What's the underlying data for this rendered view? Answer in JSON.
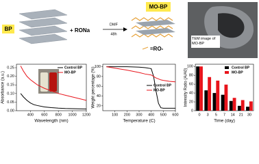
{
  "scheme": {
    "bp_label": "BP",
    "reagent": "+ RONa",
    "solvent": "DMF",
    "time": "48h",
    "product_label": "MO-BP",
    "group_label": "=RO-",
    "tem_caption": "TEM image of MO-BP"
  },
  "chart_data": [
    {
      "type": "line",
      "xlabel": "Wavelength (nm)",
      "ylabel": "Absorbance (a.u.)",
      "x": [
        260,
        300,
        350,
        400,
        450,
        500,
        600,
        700,
        800,
        900,
        1000,
        1100,
        1200
      ],
      "series": [
        {
          "name": "Control BP",
          "color": "#000000",
          "values": [
            0.1,
            0.08,
            0.06,
            0.045,
            0.035,
            0.03,
            0.022,
            0.018,
            0.015,
            0.013,
            0.012,
            0.011,
            0.01
          ]
        },
        {
          "name": "MO-BP",
          "color": "#e8141b",
          "values": [
            0.26,
            0.23,
            0.2,
            0.18,
            0.165,
            0.15,
            0.13,
            0.115,
            0.1,
            0.09,
            0.08,
            0.07,
            0.06
          ]
        }
      ],
      "xlim": [
        200,
        1200
      ],
      "xticks": [
        400,
        600,
        800,
        1000,
        1200
      ],
      "ylim": [
        0,
        0.27
      ],
      "yticks": [
        {
          "value": 0,
          "label": "0.00"
        },
        {
          "value": 0.05,
          "label": "0.05"
        },
        {
          "value": 0.1,
          "label": "0.10"
        },
        {
          "value": 0.15,
          "label": "0.15"
        },
        {
          "value": 0.2,
          "label": "0.20"
        },
        {
          "value": 0.25,
          "label": "0.25"
        }
      ],
      "legend": "upper right"
    },
    {
      "type": "line",
      "xlabel": "Temperature (C)",
      "ylabel": "Weight percentage (%)",
      "x": [
        30,
        100,
        200,
        300,
        350,
        400,
        420,
        440,
        460,
        480,
        500,
        550,
        600
      ],
      "series": [
        {
          "name": "Control BP",
          "color": "#000000",
          "values": [
            100,
            100,
            100,
            99,
            98,
            96,
            80,
            50,
            25,
            16,
            15,
            15,
            15
          ]
        },
        {
          "name": "MO-BP",
          "color": "#e8141b",
          "values": [
            100,
            97,
            93,
            88,
            85,
            83,
            80,
            77,
            75,
            73,
            72,
            70,
            69
          ]
        }
      ],
      "xlim": [
        0,
        600
      ],
      "xticks": [
        100,
        200,
        300,
        400,
        500,
        600
      ],
      "ylim": [
        10,
        105
      ],
      "yticks": [
        20,
        40,
        60,
        80,
        100
      ],
      "legend": "center right"
    },
    {
      "type": "bar",
      "xlabel": "Time (day)",
      "ylabel": "Intensity Ratio (A/A0)",
      "categories": [
        "0",
        "3",
        "5",
        "7",
        "14",
        "21",
        "30"
      ],
      "series": [
        {
          "name": "Control BP",
          "color": "#000000",
          "values": [
            100,
            46,
            40,
            36,
            22,
            11,
            9
          ]
        },
        {
          "name": "MO-BP",
          "color": "#e8141b",
          "values": [
            100,
            76,
            68,
            59,
            29,
            24,
            21
          ]
        }
      ],
      "ylim": [
        0,
        105
      ],
      "yticks": [
        0,
        20,
        40,
        60,
        80,
        100
      ],
      "legend": "upper right"
    }
  ]
}
